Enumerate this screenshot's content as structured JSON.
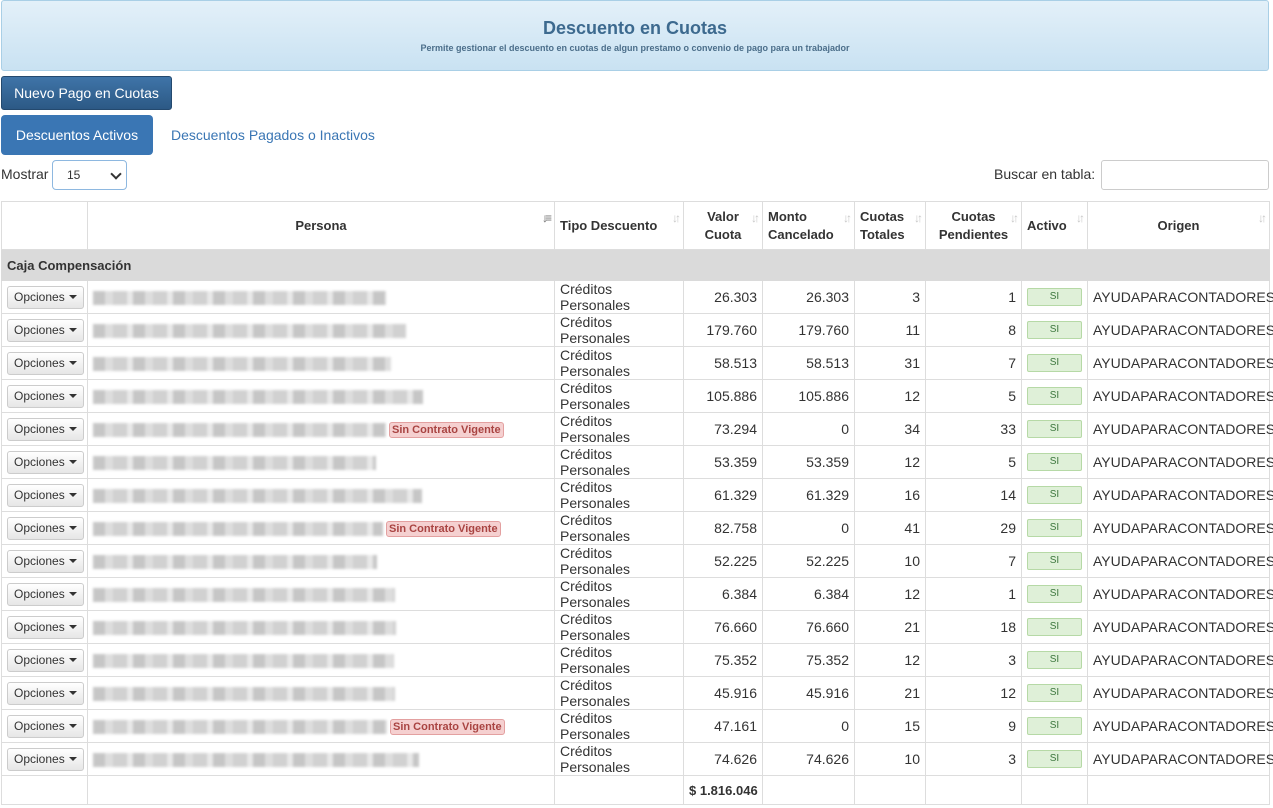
{
  "header": {
    "title": "Descuento en Cuotas",
    "subtitle": "Permite gestionar el descuento en cuotas de algun prestamo o convenio de pago para un trabajador"
  },
  "actions": {
    "new_label": "Nuevo Pago en Cuotas"
  },
  "tabs": {
    "active": "Descuentos Activos",
    "inactive": "Descuentos Pagados o Inactivos"
  },
  "controls": {
    "show_label": "Mostrar",
    "show_value": "15",
    "search_label": "Buscar en tabla:",
    "search_value": ""
  },
  "table": {
    "columns": [
      "",
      "Persona",
      "Tipo Descuento",
      "Valor Cuota",
      "Monto Cancelado",
      "Cuotas Totales",
      "Cuotas Pendientes",
      "Activo",
      "Origen"
    ],
    "group": "Caja Compensación",
    "options_label": "Opciones",
    "badge_label": "Sin Contrato Vigente",
    "rows": [
      {
        "tipo": "Créditos Personales",
        "valor": "26.303",
        "cancelado": "26.303",
        "totales": "3",
        "pendientes": "1",
        "activo": "SI",
        "origen": "AYUDAPARACONTADORES",
        "sin_contrato": false
      },
      {
        "tipo": "Créditos Personales",
        "valor": "179.760",
        "cancelado": "179.760",
        "totales": "11",
        "pendientes": "8",
        "activo": "SI",
        "origen": "AYUDAPARACONTADORES",
        "sin_contrato": false
      },
      {
        "tipo": "Créditos Personales",
        "valor": "58.513",
        "cancelado": "58.513",
        "totales": "31",
        "pendientes": "7",
        "activo": "SI",
        "origen": "AYUDAPARACONTADORES",
        "sin_contrato": false
      },
      {
        "tipo": "Créditos Personales",
        "valor": "105.886",
        "cancelado": "105.886",
        "totales": "12",
        "pendientes": "5",
        "activo": "SI",
        "origen": "AYUDAPARACONTADORES",
        "sin_contrato": false
      },
      {
        "tipo": "Créditos Personales",
        "valor": "73.294",
        "cancelado": "0",
        "totales": "34",
        "pendientes": "33",
        "activo": "SI",
        "origen": "AYUDAPARACONTADORES",
        "sin_contrato": true
      },
      {
        "tipo": "Créditos Personales",
        "valor": "53.359",
        "cancelado": "53.359",
        "totales": "12",
        "pendientes": "5",
        "activo": "SI",
        "origen": "AYUDAPARACONTADORES",
        "sin_contrato": false
      },
      {
        "tipo": "Créditos Personales",
        "valor": "61.329",
        "cancelado": "61.329",
        "totales": "16",
        "pendientes": "14",
        "activo": "SI",
        "origen": "AYUDAPARACONTADORES",
        "sin_contrato": false
      },
      {
        "tipo": "Créditos Personales",
        "valor": "82.758",
        "cancelado": "0",
        "totales": "41",
        "pendientes": "29",
        "activo": "SI",
        "origen": "AYUDAPARACONTADORES",
        "sin_contrato": true
      },
      {
        "tipo": "Créditos Personales",
        "valor": "52.225",
        "cancelado": "52.225",
        "totales": "10",
        "pendientes": "7",
        "activo": "SI",
        "origen": "AYUDAPARACONTADORES",
        "sin_contrato": false
      },
      {
        "tipo": "Créditos Personales",
        "valor": "6.384",
        "cancelado": "6.384",
        "totales": "12",
        "pendientes": "1",
        "activo": "SI",
        "origen": "AYUDAPARACONTADORES",
        "sin_contrato": false
      },
      {
        "tipo": "Créditos Personales",
        "valor": "76.660",
        "cancelado": "76.660",
        "totales": "21",
        "pendientes": "18",
        "activo": "SI",
        "origen": "AYUDAPARACONTADORES",
        "sin_contrato": false
      },
      {
        "tipo": "Créditos Personales",
        "valor": "75.352",
        "cancelado": "75.352",
        "totales": "12",
        "pendientes": "3",
        "activo": "SI",
        "origen": "AYUDAPARACONTADORES",
        "sin_contrato": false
      },
      {
        "tipo": "Créditos Personales",
        "valor": "45.916",
        "cancelado": "45.916",
        "totales": "21",
        "pendientes": "12",
        "activo": "SI",
        "origen": "AYUDAPARACONTADORES",
        "sin_contrato": false
      },
      {
        "tipo": "Créditos Personales",
        "valor": "47.161",
        "cancelado": "0",
        "totales": "15",
        "pendientes": "9",
        "activo": "SI",
        "origen": "AYUDAPARACONTADORES",
        "sin_contrato": true
      },
      {
        "tipo": "Créditos Personales",
        "valor": "74.626",
        "cancelado": "74.626",
        "totales": "10",
        "pendientes": "3",
        "activo": "SI",
        "origen": "AYUDAPARACONTADORES",
        "sin_contrato": false
      }
    ],
    "total": "$ 1.816.046"
  },
  "colors": {
    "primary": "#3a76b4",
    "badge_danger": "#a94442",
    "active_badge": "#dff0d8"
  }
}
